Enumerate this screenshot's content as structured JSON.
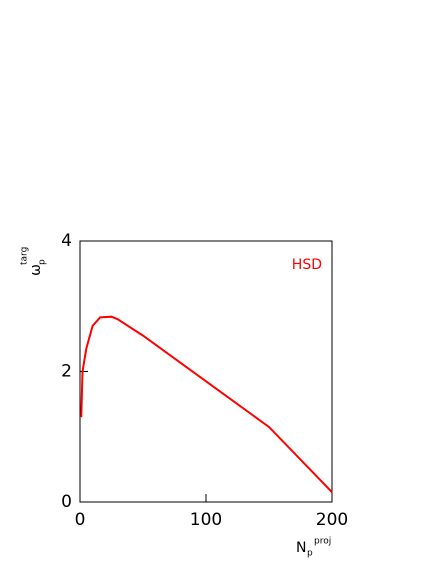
{
  "chart_data": {
    "type": "line",
    "x_label": {
      "main": "N",
      "sub": "p",
      "sup": "proj"
    },
    "y_label": {
      "main": "ω",
      "sub": "p",
      "sup": "targ"
    },
    "x": [
      1,
      2,
      5,
      10,
      16,
      25,
      30,
      50,
      100,
      150,
      200
    ],
    "series": [
      {
        "name": "HSD",
        "color": "#ff0000",
        "values": [
          1.3,
          2.0,
          2.35,
          2.7,
          2.83,
          2.84,
          2.8,
          2.55,
          1.85,
          1.15,
          0.15
        ]
      }
    ],
    "xlim": [
      0,
      200
    ],
    "xticks": [
      0,
      100,
      200
    ],
    "ylim": [
      0,
      4
    ],
    "yticks": [
      0,
      2,
      4
    ],
    "legend": "top-right"
  }
}
